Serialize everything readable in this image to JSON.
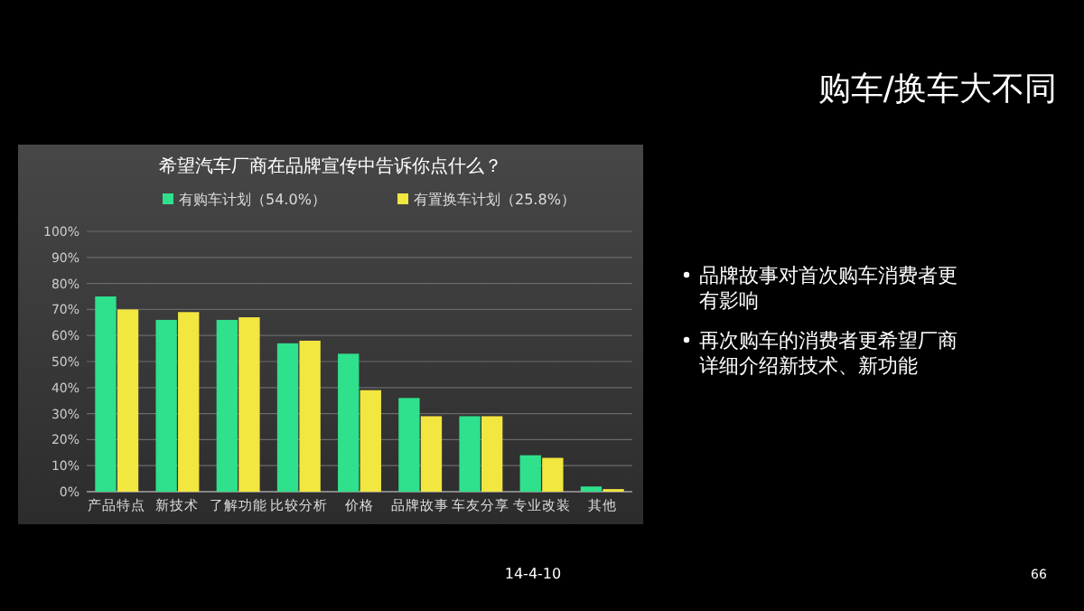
{
  "chart_data": {
    "type": "bar",
    "title": "希望汽车厂商在品牌宣传中告诉你点什么？",
    "categories": [
      "产品特点",
      "新技术",
      "了解功能",
      "比较分析",
      "价格",
      "品牌故事",
      "车友分享",
      "专业改装",
      "其他"
    ],
    "series": [
      {
        "name": "有购车计划（54.0%）",
        "color": "#2fe08c",
        "values": [
          75,
          66,
          66,
          57,
          53,
          36,
          29,
          14,
          2
        ]
      },
      {
        "name": "有置换车计划（25.8%）",
        "color": "#f2e640",
        "values": [
          70,
          69,
          67,
          58,
          39,
          29,
          29,
          13,
          1
        ]
      }
    ],
    "ylim": [
      0,
      100
    ],
    "yticks": [
      {
        "value": 0,
        "label": "0%"
      },
      {
        "value": 10,
        "label": "10%"
      },
      {
        "value": 20,
        "label": "20%"
      },
      {
        "value": 30,
        "label": "30%"
      },
      {
        "value": 40,
        "label": "40%"
      },
      {
        "value": 50,
        "label": "50%"
      },
      {
        "value": 60,
        "label": "60%"
      },
      {
        "value": 70,
        "label": "70%"
      },
      {
        "value": 80,
        "label": "80%"
      },
      {
        "value": 90,
        "label": "90%"
      },
      {
        "value": 100,
        "label": "100%"
      }
    ],
    "grid": "y",
    "legend": "top",
    "annotations": [
      "购车/换车大不同",
      "品牌故事对首次购车消费者更有影响",
      "再次购车的消费者更希望厂商详细介绍新技术、新功能",
      "14-4-10",
      "66"
    ]
  }
}
